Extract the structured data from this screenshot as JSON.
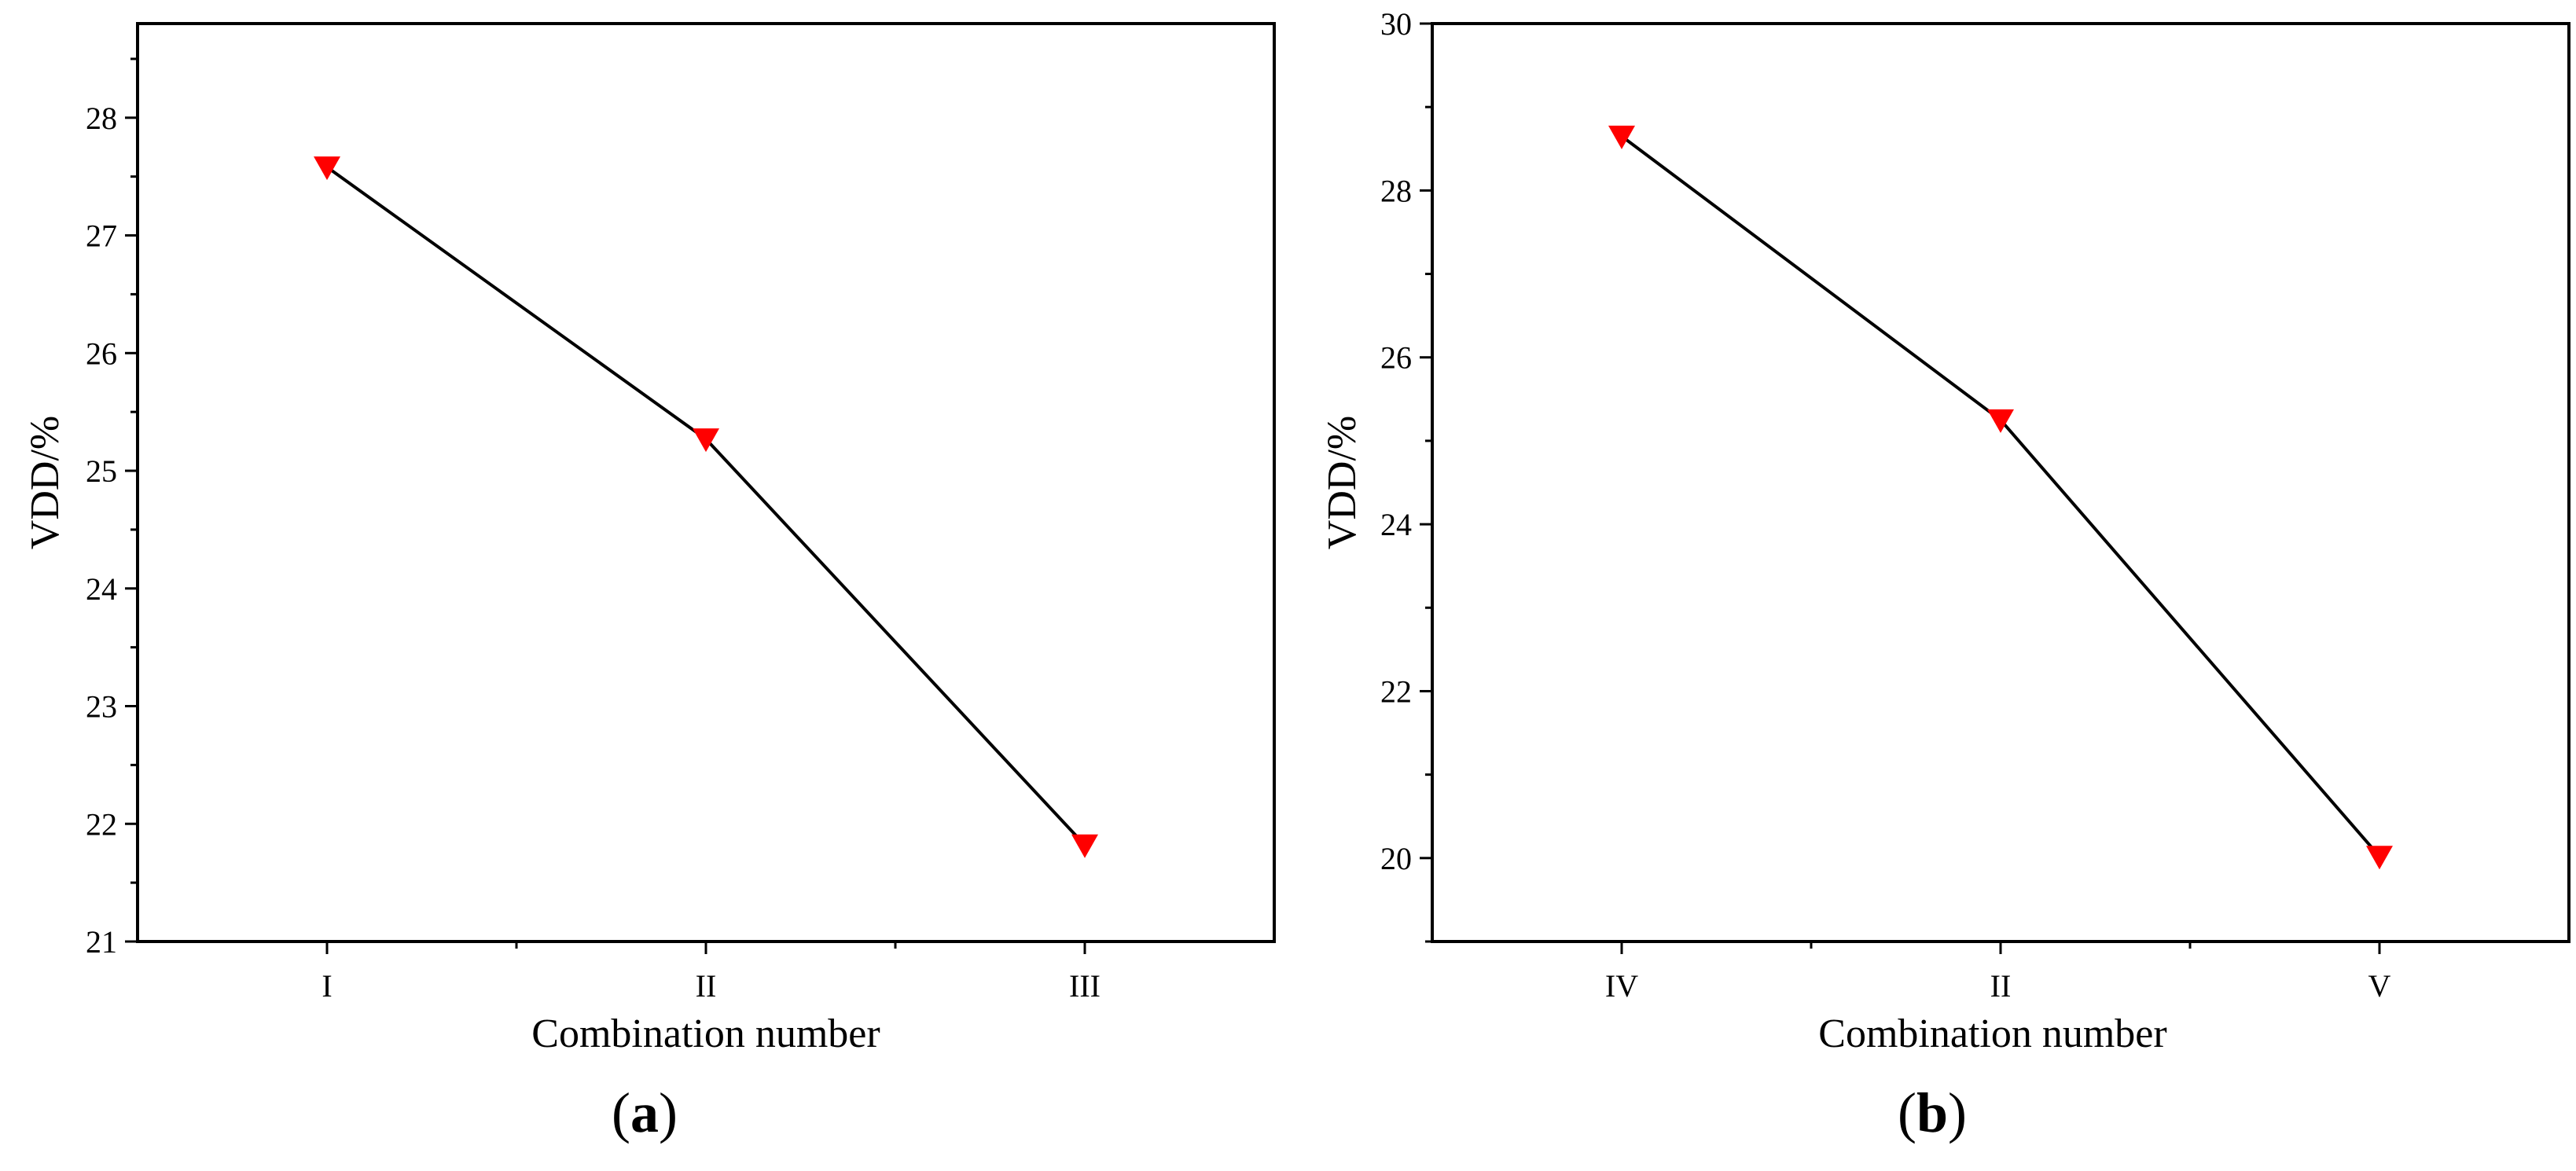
{
  "chart_data": [
    {
      "type": "line",
      "panel_label": {
        "open": "(",
        "letter": "a",
        "close": ")"
      },
      "xlabel": "Combination number",
      "ylabel": "VDD/%",
      "categories": [
        "I",
        "II",
        "III"
      ],
      "series": [
        {
          "values": [
            27.58,
            25.27,
            21.82
          ],
          "line_color": "#000000",
          "marker": "down-triangle",
          "marker_color": "#ff0000"
        }
      ],
      "ylim": [
        21,
        28.8
      ],
      "yticks": [
        21,
        22,
        23,
        24,
        25,
        26,
        27,
        28
      ],
      "y_minor_step": 0.5,
      "xlim": [
        -0.5,
        2.5
      ],
      "grid": false,
      "legend": "none"
    },
    {
      "type": "line",
      "panel_label": {
        "open": "(",
        "letter": "b",
        "close": ")"
      },
      "xlabel": "Combination number",
      "ylabel": "VDD/%",
      "categories": [
        "IV",
        "II",
        "V"
      ],
      "series": [
        {
          "values": [
            28.65,
            25.25,
            20.02
          ],
          "line_color": "#000000",
          "marker": "down-triangle",
          "marker_color": "#ff0000"
        }
      ],
      "ylim": [
        19,
        30
      ],
      "yticks": [
        20,
        22,
        24,
        26,
        28,
        30
      ],
      "y_minor_step": 1,
      "xlim": [
        -0.5,
        2.5
      ],
      "grid": false,
      "legend": "none"
    }
  ]
}
